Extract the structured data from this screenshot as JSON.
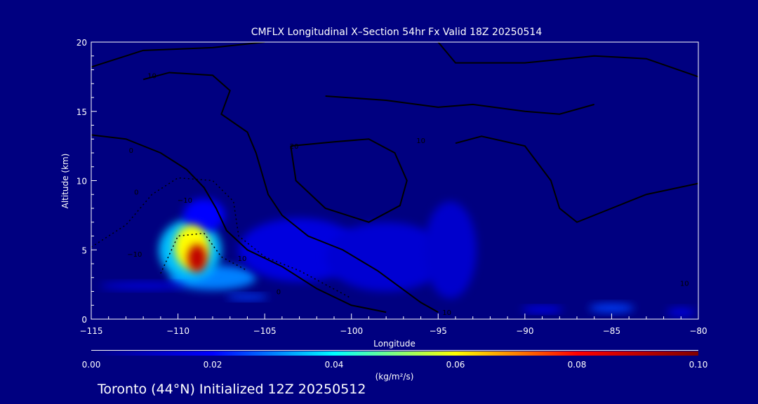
{
  "chart_data": {
    "type": "heatmap",
    "title": "CMFLX Longitudinal X–Section 54hr  Fx Valid 18Z 20250514",
    "xlabel": "Longitude",
    "ylabel": "Altitude (km)",
    "xlim": [
      -115,
      -80
    ],
    "ylim": [
      0,
      20
    ],
    "xticks": [
      -115,
      -110,
      -105,
      -100,
      -95,
      -90,
      -85,
      -80
    ],
    "xtick_labels": [
      "−115",
      "−110",
      "−105",
      "−100",
      "−95",
      "−90",
      "−85",
      "−80"
    ],
    "yticks": [
      0,
      5,
      10,
      15,
      20
    ],
    "ytick_labels": [
      "0",
      "5",
      "10",
      "15",
      "20"
    ],
    "grid": false,
    "colorbar": {
      "range": [
        0,
        0.1
      ],
      "ticks": [
        "0.00",
        "0.02",
        "0.04",
        "0.06",
        "0.08",
        "0.10"
      ],
      "units": "(kg/m²/s)",
      "colormap": [
        "#00007f",
        "#0000ff",
        "#00ffff",
        "#ffff00",
        "#ff0000",
        "#7f0000"
      ],
      "placement": "bottom"
    },
    "field_blobs": [
      {
        "lon": -108,
        "alt": 3.0,
        "rlon": 2.5,
        "ralt": 0.9,
        "value": 0.03
      },
      {
        "lon": -109.3,
        "alt": 5.0,
        "rlon": 1.8,
        "ralt": 2.2,
        "value": 0.035
      },
      {
        "lon": -108.5,
        "alt": 7.5,
        "rlon": 1.2,
        "ralt": 1.2,
        "value": 0.02
      },
      {
        "lon": -103,
        "alt": 5.0,
        "rlon": 3.5,
        "ralt": 2.3,
        "value": 0.015
      },
      {
        "lon": -98,
        "alt": 4.5,
        "rlon": 3.5,
        "ralt": 2.5,
        "value": 0.013
      },
      {
        "lon": -94.3,
        "alt": 5.0,
        "rlon": 1.5,
        "ralt": 3.5,
        "value": 0.012
      },
      {
        "lon": -112,
        "alt": 2.4,
        "rlon": 2.5,
        "ralt": 0.25,
        "value": 0.015
      },
      {
        "lon": -109.2,
        "alt": 5.2,
        "rlon": 1.0,
        "ralt": 1.6,
        "value": 0.06
      },
      {
        "lon": -108.9,
        "alt": 4.4,
        "rlon": 0.55,
        "ralt": 1.0,
        "value": 0.09
      },
      {
        "lon": -106,
        "alt": 1.6,
        "rlon": 1.2,
        "ralt": 0.2,
        "value": 0.025
      },
      {
        "lon": -89,
        "alt": 0.7,
        "rlon": 1.2,
        "ralt": 0.2,
        "value": 0.02
      },
      {
        "lon": -85,
        "alt": 0.8,
        "rlon": 1.3,
        "ralt": 0.3,
        "value": 0.025
      },
      {
        "lon": -81,
        "alt": 0.5,
        "rlon": 0.8,
        "ralt": 0.3,
        "value": 0.015
      }
    ],
    "contours": [
      {
        "level": 0,
        "dashed": false,
        "points": [
          [
            -115,
            18.2
          ],
          [
            -112,
            19.4
          ],
          [
            -108,
            19.6
          ],
          [
            -105,
            20
          ]
        ]
      },
      {
        "level": 0,
        "dashed": false,
        "points": [
          [
            -115,
            13.3
          ],
          [
            -113,
            13
          ],
          [
            -111,
            12
          ],
          [
            -109.5,
            10.8
          ],
          [
            -108.5,
            9.5
          ],
          [
            -107.8,
            8
          ],
          [
            -107.2,
            6.4
          ],
          [
            -106,
            5
          ],
          [
            -104,
            3.8
          ],
          [
            -102,
            2.2
          ],
          [
            -100,
            1
          ],
          [
            -98,
            0.5
          ]
        ]
      },
      {
        "level": 10,
        "dashed": false,
        "points": [
          [
            -112,
            17.3
          ],
          [
            -110.5,
            17.8
          ],
          [
            -108,
            17.6
          ],
          [
            -107,
            16.5
          ],
          [
            -107.5,
            14.8
          ],
          [
            -106,
            13.5
          ],
          [
            -105.5,
            12
          ],
          [
            -104.8,
            9
          ],
          [
            -104,
            7.5
          ],
          [
            -102.5,
            6
          ],
          [
            -100.5,
            5
          ],
          [
            -98.5,
            3.5
          ],
          [
            -96,
            1.2
          ],
          [
            -95,
            0.5
          ]
        ]
      },
      {
        "level": 20,
        "dashed": false,
        "points": [
          [
            -103.5,
            12.5
          ],
          [
            -101,
            12.8
          ],
          [
            -99,
            13
          ],
          [
            -97.5,
            12
          ],
          [
            -96.8,
            10
          ],
          [
            -97.2,
            8.2
          ],
          [
            -99,
            7
          ],
          [
            -101.5,
            8
          ],
          [
            -103.2,
            10
          ],
          [
            -103.5,
            12.5
          ]
        ]
      },
      {
        "level": 10,
        "dashed": false,
        "points": [
          [
            -101.5,
            16.1
          ],
          [
            -98,
            15.8
          ],
          [
            -95,
            15.3
          ],
          [
            -93,
            15.5
          ],
          [
            -90,
            15
          ],
          [
            -88,
            14.8
          ],
          [
            -86,
            15.5
          ]
        ]
      },
      {
        "level": 10,
        "dashed": false,
        "points": [
          [
            -94,
            12.7
          ],
          [
            -92.5,
            13.2
          ],
          [
            -90,
            12.5
          ],
          [
            -88.5,
            10
          ],
          [
            -88,
            8
          ],
          [
            -87,
            7
          ],
          [
            -85,
            8
          ],
          [
            -83,
            9
          ],
          [
            -80,
            9.8
          ]
        ]
      },
      {
        "level": 0,
        "dashed": false,
        "points": [
          [
            -95,
            20
          ],
          [
            -94,
            18.5
          ],
          [
            -90,
            18.5
          ],
          [
            -86,
            19
          ],
          [
            -83,
            18.8
          ],
          [
            -80,
            17.5
          ]
        ]
      },
      {
        "level": -10,
        "dashed": true,
        "points": [
          [
            -115,
            5.2
          ],
          [
            -113,
            6.8
          ],
          [
            -111.5,
            9
          ],
          [
            -110,
            10.2
          ],
          [
            -108,
            10
          ],
          [
            -106.8,
            8.5
          ],
          [
            -106.5,
            6
          ],
          [
            -105,
            4.5
          ],
          [
            -103,
            3.5
          ],
          [
            -100,
            1.5
          ]
        ]
      },
      {
        "level": -10,
        "dashed": true,
        "points": [
          [
            -111,
            3.3
          ],
          [
            -110,
            6
          ],
          [
            -108.5,
            6.2
          ],
          [
            -107.5,
            4.5
          ],
          [
            -106,
            3.5
          ]
        ]
      }
    ],
    "contour_labels": [
      {
        "text": "10",
        "lon": -111.5,
        "alt": 17.4
      },
      {
        "text": "0",
        "lon": -112.7,
        "alt": 12
      },
      {
        "text": "0",
        "lon": -112.4,
        "alt": 9
      },
      {
        "text": "20",
        "lon": -103.3,
        "alt": 12.3
      },
      {
        "text": "−10",
        "lon": -109.6,
        "alt": 8.4
      },
      {
        "text": "10",
        "lon": -106.3,
        "alt": 4.2
      },
      {
        "text": "−10",
        "lon": -112.5,
        "alt": 4.5
      },
      {
        "text": "0",
        "lon": -104.2,
        "alt": 1.8
      },
      {
        "text": "10",
        "lon": -96,
        "alt": 12.7
      },
      {
        "text": "10",
        "lon": -80.8,
        "alt": 2.4
      },
      {
        "text": "10",
        "lon": -94.5,
        "alt": 0.3
      }
    ]
  },
  "footer": "Toronto (44°N) Initialized 12Z 20250512"
}
